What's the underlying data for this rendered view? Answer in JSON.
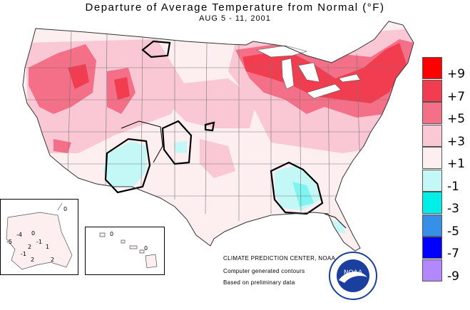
{
  "title": "Departure of Average Temperature from Normal (°F)",
  "subtitle": "AUG 5 - 11, 2001",
  "legend": [
    {
      "label": "+9",
      "color": "#ff0000"
    },
    {
      "label": "+7",
      "color": "#f23c4f"
    },
    {
      "label": "+5",
      "color": "#f47088"
    },
    {
      "label": "+3",
      "color": "#fac8d4"
    },
    {
      "label": "+1",
      "color": "#fdeef0"
    },
    {
      "label": "-1",
      "color": "#c4f8f6"
    },
    {
      "label": "-3",
      "color": "#00eee8"
    },
    {
      "label": "-5",
      "color": "#3790e8"
    },
    {
      "label": "-7",
      "color": "#0000ff"
    },
    {
      "label": "-9",
      "color": "#b388ff"
    }
  ],
  "credits": {
    "center": "CLIMATE PREDICTION CENTER, NOAA",
    "line1": "Computer generated contours",
    "line2": "Based on preliminary data"
  },
  "noaa_logo": {
    "text": "NOAA"
  },
  "alaska_labels": [
    "0",
    "-4",
    "-5",
    "-1",
    "0",
    "2",
    "1",
    "-1",
    "2",
    "2"
  ],
  "hawaii_labels": [
    "0",
    "0"
  ]
}
